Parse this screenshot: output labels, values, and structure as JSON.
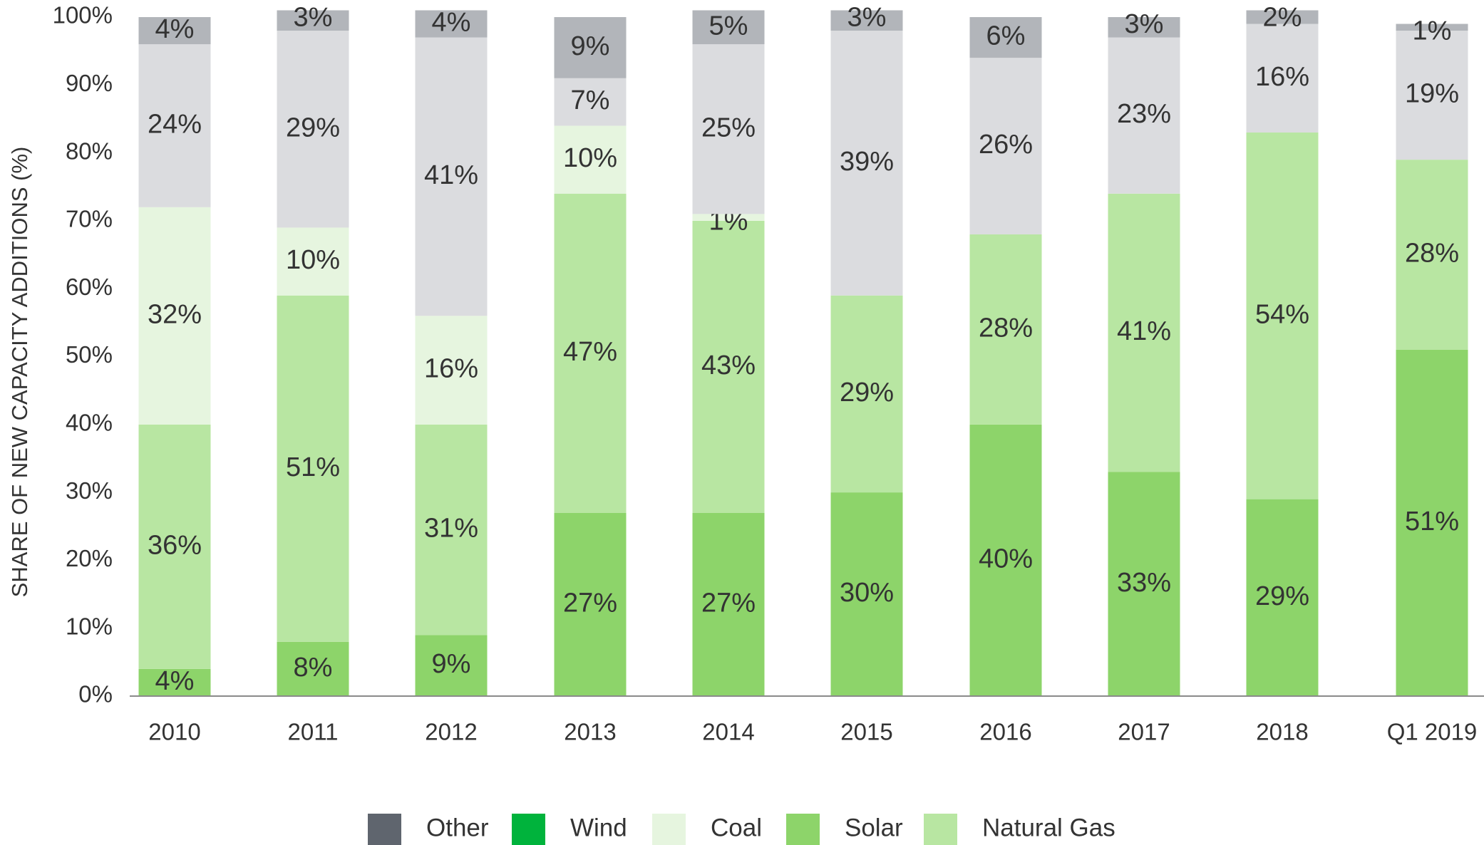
{
  "chart_data": {
    "type": "bar",
    "stacked": true,
    "title": "",
    "xlabel": "",
    "ylabel": "SHARE OF NEW CAPACITY ADDITIONS (%)",
    "ylim": [
      0,
      100
    ],
    "yticks": [
      "0%",
      "10%",
      "20%",
      "30%",
      "40%",
      "50%",
      "60%",
      "70%",
      "80%",
      "90%",
      "100%"
    ],
    "grid": false,
    "legend_position": "bottom",
    "categories": [
      "2010",
      "2011",
      "2012",
      "2013",
      "2014",
      "2015",
      "2016",
      "2017",
      "2018",
      "Q1 2019"
    ],
    "series": [
      {
        "name": "Solar",
        "color": "#8dd46a",
        "values": [
          4,
          8,
          9,
          27,
          27,
          30,
          40,
          33,
          29,
          51
        ],
        "labels": [
          "4%",
          "8%",
          "9%",
          "27%",
          "27%",
          "30%",
          "40%",
          "33%",
          "29%",
          "51%"
        ]
      },
      {
        "name": "Natural Gas",
        "color": "#b8e6a2",
        "values": [
          36,
          51,
          31,
          47,
          43,
          29,
          28,
          41,
          54,
          28
        ],
        "labels": [
          "36%",
          "51%",
          "31%",
          "47%",
          "43%",
          "29%",
          "28%",
          "41%",
          "54%",
          "28%"
        ]
      },
      {
        "name": "Coal",
        "color": "#e6f5df",
        "values": [
          32,
          10,
          16,
          10,
          1,
          0,
          0,
          0,
          0,
          0
        ],
        "labels": [
          "32%",
          "10%",
          "16%",
          "10%",
          "1%",
          "",
          "",
          "",
          "",
          ""
        ]
      },
      {
        "name": "Wind",
        "color": "#dbdcdf",
        "values": [
          24,
          29,
          41,
          7,
          25,
          39,
          26,
          23,
          16,
          19
        ],
        "labels": [
          "24%",
          "29%",
          "41%",
          "7%",
          "25%",
          "39%",
          "26%",
          "23%",
          "16%",
          "19%"
        ]
      },
      {
        "name": "Other",
        "color": "#b2b5ba",
        "values": [
          4,
          3,
          4,
          9,
          5,
          3,
          6,
          3,
          2,
          1
        ],
        "labels": [
          "4%",
          "3%",
          "4%",
          "9%",
          "5%",
          "3%",
          "6%",
          "3%",
          "2%",
          "1%"
        ]
      }
    ],
    "legend": [
      {
        "name": "Other",
        "color": "#5f656e"
      },
      {
        "name": "Wind",
        "color": "#00b33c"
      },
      {
        "name": "Coal",
        "color": "#e6f5df"
      },
      {
        "name": "Solar",
        "color": "#8dd46a"
      },
      {
        "name": "Natural Gas",
        "color": "#b8e6a2"
      }
    ]
  }
}
